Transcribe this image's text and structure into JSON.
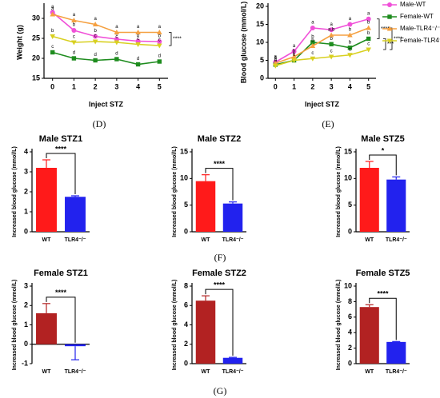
{
  "panel_labels": [
    "(D)",
    "(E)",
    "(F)",
    "(G)"
  ],
  "chart_data": [
    {
      "type": "line",
      "ylabel": "Weight (g)",
      "xlabel": "Inject STZ",
      "x": [
        0,
        1,
        2,
        3,
        4,
        5
      ],
      "xlim": [
        -0.4,
        5.4
      ],
      "xticks": [
        0,
        1,
        2,
        3,
        4,
        5
      ],
      "ylim": [
        15,
        33
      ],
      "yticks": [
        15,
        20,
        25,
        30
      ],
      "series": [
        {
          "name": "Male-WT",
          "color": "#f050d8",
          "marker": "circle",
          "values": [
            31.5,
            27,
            25.5,
            24.8,
            24.3,
            24.2
          ],
          "point_labels": [
            "a",
            "b",
            "b",
            "b",
            "b",
            "b"
          ]
        },
        {
          "name": "Female-WT",
          "color": "#1e8c1e",
          "marker": "square",
          "values": [
            21.5,
            20,
            19.5,
            19.8,
            18.5,
            19.2
          ],
          "point_labels": [
            "c",
            "d",
            "d",
            "d",
            "d",
            "d"
          ]
        },
        {
          "name": "Male-TLR4⁻/⁻",
          "color": "#f5a040",
          "marker": "triangle",
          "values": [
            31,
            29.5,
            28.5,
            26.5,
            26.5,
            26.5
          ],
          "point_labels": [
            "a",
            "a",
            "a",
            "a",
            "a",
            "a"
          ]
        },
        {
          "name": "Female-TLR4⁻/⁻",
          "color": "#d8d020",
          "marker": "down",
          "values": [
            25.5,
            24,
            24.2,
            24,
            23.5,
            23.2
          ],
          "point_labels": [
            "b",
            "c",
            "c",
            "c",
            "c",
            "c"
          ]
        }
      ],
      "annotations": [
        "****"
      ]
    },
    {
      "type": "line",
      "ylabel": "Blood glucose (mmol/L)",
      "xlabel": "Inject STZ",
      "legend": "right",
      "x": [
        0,
        1,
        2,
        3,
        4,
        5
      ],
      "xlim": [
        -0.4,
        5.4
      ],
      "xticks": [
        0,
        1,
        2,
        3,
        4,
        5
      ],
      "ylim": [
        0,
        20
      ],
      "yticks": [
        0,
        5,
        10,
        15,
        20
      ],
      "series": [
        {
          "name": "Male-WT",
          "color": "#f050d8",
          "marker": "circle",
          "values": [
            4.5,
            7.5,
            14,
            13.5,
            15,
            16.5
          ],
          "point_labels": [
            "a",
            "a",
            "a",
            "a",
            "a",
            "a"
          ]
        },
        {
          "name": "Female-WT",
          "color": "#1e8c1e",
          "marker": "square",
          "values": [
            3.8,
            5,
            10,
            9.5,
            8.5,
            11
          ],
          "point_labels": [
            "a",
            "b",
            "b",
            "b",
            "b",
            "b"
          ]
        },
        {
          "name": "Male-TLR4⁻/⁻",
          "color": "#f5a040",
          "marker": "triangle",
          "values": [
            4.2,
            6,
            9,
            12,
            12,
            14
          ],
          "point_labels": [
            "a",
            "b",
            "b",
            "a,b",
            "b",
            "b"
          ]
        },
        {
          "name": "Female-TLR4⁻/⁻",
          "color": "#d8d020",
          "marker": "down",
          "values": [
            3.5,
            5,
            5.5,
            6,
            6.5,
            8
          ],
          "point_labels": [
            "a",
            "c",
            "c",
            "c",
            "c",
            "c"
          ]
        }
      ],
      "annotations": [
        "****",
        "***",
        "****"
      ]
    },
    {
      "type": "bar",
      "title": "Male STZ1",
      "ylabel": "Increased blood glucose (mmol/L)",
      "categories": [
        "WT",
        "TLR4⁻/⁻"
      ],
      "values": [
        3.2,
        1.75
      ],
      "errors": [
        0.4,
        0.05
      ],
      "colors": [
        "#ff1a1a",
        "#2222ee"
      ],
      "ylim": [
        0,
        4
      ],
      "yticks": [
        0,
        1,
        2,
        3,
        4
      ],
      "annotation": "****"
    },
    {
      "type": "bar",
      "title": "Male STZ2",
      "ylabel": "Increased blood glucose (mmol/L)",
      "categories": [
        "WT",
        "TLR4⁻/⁻"
      ],
      "values": [
        9.5,
        5.3
      ],
      "errors": [
        1.2,
        0.3
      ],
      "colors": [
        "#ff1a1a",
        "#2222ee"
      ],
      "ylim": [
        0,
        15
      ],
      "yticks": [
        0,
        5,
        10,
        15
      ],
      "annotation": "****"
    },
    {
      "type": "bar",
      "title": "Male STZ5",
      "ylabel": "Increased blood glucose (mmol/L)",
      "categories": [
        "WT",
        "TLR4⁻/⁻"
      ],
      "values": [
        12,
        9.8
      ],
      "errors": [
        1.2,
        0.5
      ],
      "colors": [
        "#ff1a1a",
        "#2222ee"
      ],
      "ylim": [
        0,
        15
      ],
      "yticks": [
        0,
        5,
        10,
        15
      ],
      "annotation": "*"
    },
    {
      "type": "bar",
      "title": "Female STZ1",
      "ylabel": "Increased blood glucose (mmol/L)",
      "categories": [
        "WT",
        "TLR4⁻/⁻"
      ],
      "values": [
        1.6,
        -0.1
      ],
      "errors": [
        0.5,
        0.7
      ],
      "colors": [
        "#b22222",
        "#2222ee"
      ],
      "ylim": [
        -1,
        3
      ],
      "yticks": [
        -1,
        0,
        1,
        2,
        3
      ],
      "annotation": "****"
    },
    {
      "type": "bar",
      "title": "Female STZ2",
      "ylabel": "Increased blood glucose (mmol/L)",
      "categories": [
        "WT",
        "TLR4⁻/⁻"
      ],
      "values": [
        6.5,
        0.6
      ],
      "errors": [
        0.5,
        0.05
      ],
      "colors": [
        "#b22222",
        "#2222ee"
      ],
      "ylim": [
        0,
        8
      ],
      "yticks": [
        0,
        2,
        4,
        6,
        8
      ],
      "annotation": "****"
    },
    {
      "type": "bar",
      "title": "Female STZ5",
      "ylabel": "Increased blood glucose (mmol/L)",
      "categories": [
        "WT",
        "TLR4⁻/⁻"
      ],
      "values": [
        7.3,
        2.8
      ],
      "errors": [
        0.3,
        0.05
      ],
      "colors": [
        "#b22222",
        "#2222ee"
      ],
      "ylim": [
        0,
        10
      ],
      "yticks": [
        0,
        2,
        4,
        6,
        8,
        10
      ],
      "annotation": "****"
    }
  ]
}
